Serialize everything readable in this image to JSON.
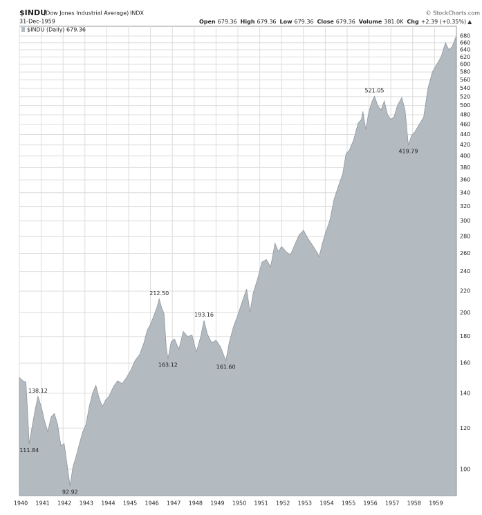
{
  "chart_data": {
    "type": "area",
    "title": "$INDU",
    "subtitle": "(Dow Jones Industrial Average)",
    "exchange": "INDX",
    "date": "31-Dec-1959",
    "source": "© StockCharts.com",
    "quote": [
      {
        "label": "Open",
        "value": "679.36"
      },
      {
        "label": "High",
        "value": "679.36"
      },
      {
        "label": "Low",
        "value": "679.36"
      },
      {
        "label": "Close",
        "value": "679.36"
      },
      {
        "label": "Volume",
        "value": "381.0K"
      },
      {
        "label": "Chg",
        "value": "+2.39 (+0.35%)"
      }
    ],
    "change_marker": "▲",
    "log_scale": true,
    "grid": true,
    "legend": "top-left",
    "x": [
      1940.0,
      1940.15,
      1940.3,
      1940.38,
      1940.45,
      1940.6,
      1940.72,
      1940.85,
      1941.0,
      1941.15,
      1941.3,
      1941.45,
      1941.6,
      1941.75,
      1941.9,
      1942.05,
      1942.2,
      1942.32,
      1942.45,
      1942.6,
      1942.75,
      1942.9,
      1943.05,
      1943.2,
      1943.35,
      1943.5,
      1943.65,
      1943.8,
      1943.95,
      1944.1,
      1944.3,
      1944.5,
      1944.7,
      1944.9,
      1945.1,
      1945.3,
      1945.5,
      1945.7,
      1945.85,
      1946.0,
      1946.15,
      1946.3,
      1946.4,
      1946.5,
      1946.62,
      1946.72,
      1946.8,
      1946.95,
      1947.1,
      1947.3,
      1947.5,
      1947.7,
      1947.9,
      1948.1,
      1948.3,
      1948.45,
      1948.6,
      1948.8,
      1949.0,
      1949.2,
      1949.45,
      1949.6,
      1949.8,
      1950.0,
      1950.2,
      1950.4,
      1950.5,
      1950.55,
      1950.7,
      1950.9,
      1951.1,
      1951.3,
      1951.5,
      1951.7,
      1951.85,
      1952.0,
      1952.2,
      1952.4,
      1952.6,
      1952.8,
      1953.0,
      1953.2,
      1953.4,
      1953.6,
      1953.72,
      1953.85,
      1954.0,
      1954.2,
      1954.4,
      1954.6,
      1954.8,
      1954.95,
      1955.1,
      1955.3,
      1955.5,
      1955.65,
      1955.72,
      1955.85,
      1956.0,
      1956.15,
      1956.25,
      1956.4,
      1956.55,
      1956.7,
      1956.85,
      1957.0,
      1957.15,
      1957.3,
      1957.5,
      1957.65,
      1957.8,
      1957.95,
      1958.1,
      1958.3,
      1958.5,
      1958.7,
      1958.9,
      1959.1,
      1959.3,
      1959.5,
      1959.65,
      1959.8,
      1959.99
    ],
    "series": [
      {
        "name": "$INDU (Daily) 679.36",
        "color": "#b3bac0",
        "line_color": "#8e979e",
        "values": [
          150,
          148,
          147,
          128,
          111.84,
          122,
          130,
          138.12,
          132,
          124,
          118,
          126,
          128,
          122,
          111,
          112,
          101,
          92.92,
          101,
          106,
          112,
          118,
          122,
          132,
          140,
          145,
          137,
          132,
          136,
          138,
          144,
          148,
          146,
          150,
          155,
          162,
          166,
          175,
          185,
          190,
          197,
          205,
          212.5,
          205,
          199,
          172,
          163.12,
          176,
          178,
          170,
          184,
          180,
          181,
          168,
          180,
          193.16,
          182,
          175,
          177,
          172,
          161.6,
          175,
          188,
          198,
          210,
          222,
          208,
          200,
          218,
          232,
          250,
          253,
          245,
          272,
          262,
          268,
          262,
          258,
          270,
          282,
          288,
          278,
          270,
          262,
          256,
          270,
          284,
          300,
          330,
          350,
          370,
          404,
          410,
          430,
          462,
          470,
          487,
          450,
          488,
          510,
          521.05,
          500,
          490,
          510,
          480,
          470,
          476,
          500,
          518,
          490,
          419.79,
          438,
          445,
          460,
          475,
          540,
          580,
          600,
          620,
          660,
          640,
          648,
          679.36
        ]
      }
    ],
    "xlim": [
      1940,
      1960
    ],
    "xticks": [
      1940,
      1941,
      1942,
      1943,
      1944,
      1945,
      1946,
      1947,
      1948,
      1949,
      1950,
      1951,
      1952,
      1953,
      1954,
      1955,
      1956,
      1957,
      1958,
      1959
    ],
    "ylim": [
      89,
      710
    ],
    "yticks": [
      100,
      120,
      140,
      160,
      180,
      200,
      220,
      240,
      260,
      280,
      300,
      320,
      340,
      360,
      380,
      400,
      420,
      440,
      460,
      480,
      500,
      520,
      540,
      560,
      580,
      600,
      620,
      640,
      660,
      680
    ],
    "annotations": [
      {
        "x": 1940.45,
        "y": 111.84,
        "label": "111.84"
      },
      {
        "x": 1940.85,
        "y": 138.12,
        "label": "138.12"
      },
      {
        "x": 1942.32,
        "y": 92.92,
        "label": "92.92"
      },
      {
        "x": 1946.4,
        "y": 212.5,
        "label": "212.50"
      },
      {
        "x": 1946.8,
        "y": 163.12,
        "label": "163.12"
      },
      {
        "x": 1948.45,
        "y": 193.16,
        "label": "193.16"
      },
      {
        "x": 1949.45,
        "y": 161.6,
        "label": "161.60"
      },
      {
        "x": 1956.25,
        "y": 521.05,
        "label": "521.05"
      },
      {
        "x": 1957.8,
        "y": 419.79,
        "label": "419.79"
      }
    ]
  }
}
